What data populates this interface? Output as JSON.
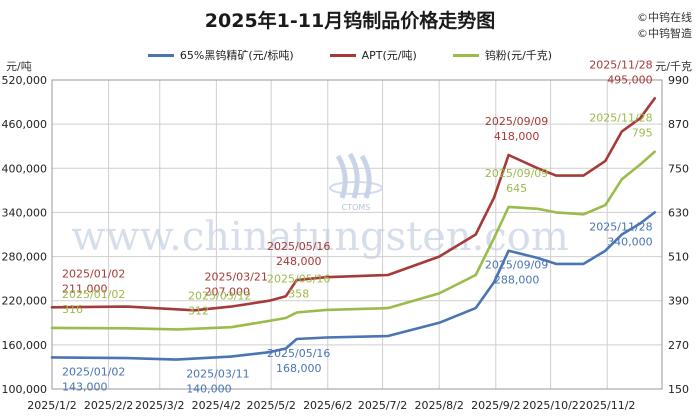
{
  "title": "2025年1-11月钨制品价格走势图",
  "copyright": [
    "©中钨在线",
    "©中钨智造"
  ],
  "watermark": {
    "text": "www.chinatungsten.com",
    "logo_text": "CTOMS"
  },
  "colors": {
    "series1": "#4a74b4",
    "series2": "#a53a38",
    "series3": "#9bbb4b",
    "grid": "#cfcfcf"
  },
  "chart_data": {
    "type": "line",
    "title": "2025年1-11月钨制品价格走势图",
    "left_axis": {
      "unit": "元/吨",
      "ylim": [
        100000,
        520000
      ],
      "ticks": [
        "100,000",
        "160,000",
        "220,000",
        "280,000",
        "340,000",
        "400,000",
        "460,000",
        "520,000"
      ]
    },
    "right_axis": {
      "unit": "元/千克",
      "ylim": [
        150,
        990
      ],
      "ticks": [
        "150",
        "270",
        "390",
        "510",
        "630",
        "750",
        "870",
        "990"
      ]
    },
    "x_ticks": [
      "2025/1/2",
      "2025/2/2",
      "2025/3/2",
      "2025/4/2",
      "2025/5/2",
      "2025/6/2",
      "2025/7/2",
      "2025/8/2",
      "2025/9/2",
      "2025/10/2",
      "2025/11/2"
    ],
    "grid": true,
    "legend_position": "top",
    "series": [
      {
        "name": "65%黑钨精矿(元/标吨)",
        "axis": "left",
        "points": [
          [
            "2025/1/2",
            143000
          ],
          [
            "2025/2/12",
            142000
          ],
          [
            "2025/3/11",
            140000
          ],
          [
            "2025/4/10",
            144000
          ],
          [
            "2025/5/1",
            150000
          ],
          [
            "2025/5/10",
            155000
          ],
          [
            "2025/5/16",
            168000
          ],
          [
            "2025/6/1",
            170000
          ],
          [
            "2025/7/5",
            172000
          ],
          [
            "2025/8/2",
            190000
          ],
          [
            "2025/8/22",
            210000
          ],
          [
            "2025/9/1",
            245000
          ],
          [
            "2025/9/9",
            288000
          ],
          [
            "2025/9/25",
            278000
          ],
          [
            "2025/10/5",
            270000
          ],
          [
            "2025/10/20",
            270000
          ],
          [
            "2025/11/1",
            288000
          ],
          [
            "2025/11/10",
            310000
          ],
          [
            "2025/11/20",
            325000
          ],
          [
            "2025/11/28",
            340000
          ]
        ]
      },
      {
        "name": "APT(元/吨)",
        "axis": "left",
        "points": [
          [
            "2025/1/2",
            211000
          ],
          [
            "2025/2/12",
            212000
          ],
          [
            "2025/3/21",
            207000
          ],
          [
            "2025/4/10",
            212000
          ],
          [
            "2025/5/1",
            220000
          ],
          [
            "2025/5/10",
            226000
          ],
          [
            "2025/5/16",
            248000
          ],
          [
            "2025/6/1",
            252000
          ],
          [
            "2025/7/5",
            255000
          ],
          [
            "2025/8/2",
            280000
          ],
          [
            "2025/8/22",
            310000
          ],
          [
            "2025/9/1",
            360000
          ],
          [
            "2025/9/9",
            418000
          ],
          [
            "2025/9/25",
            400000
          ],
          [
            "2025/10/5",
            390000
          ],
          [
            "2025/10/20",
            390000
          ],
          [
            "2025/11/1",
            410000
          ],
          [
            "2025/11/10",
            450000
          ],
          [
            "2025/11/20",
            468000
          ],
          [
            "2025/11/28",
            495000
          ]
        ]
      },
      {
        "name": "钨粉(元/千克)",
        "axis": "right",
        "points": [
          [
            "2025/1/2",
            316
          ],
          [
            "2025/2/12",
            315
          ],
          [
            "2025/3/12",
            312
          ],
          [
            "2025/4/10",
            318
          ],
          [
            "2025/5/1",
            335
          ],
          [
            "2025/5/10",
            343
          ],
          [
            "2025/5/16",
            358
          ],
          [
            "2025/6/1",
            365
          ],
          [
            "2025/7/5",
            370
          ],
          [
            "2025/8/2",
            410
          ],
          [
            "2025/8/22",
            460
          ],
          [
            "2025/9/1",
            560
          ],
          [
            "2025/9/9",
            645
          ],
          [
            "2025/9/25",
            640
          ],
          [
            "2025/10/5",
            630
          ],
          [
            "2025/10/20",
            625
          ],
          [
            "2025/11/1",
            650
          ],
          [
            "2025/11/10",
            720
          ],
          [
            "2025/11/20",
            760
          ],
          [
            "2025/11/28",
            795
          ]
        ]
      }
    ],
    "annotations": [
      {
        "series": 1,
        "date": "2025/1/2",
        "date_label": "2025/01/02",
        "value_label": "211,000"
      },
      {
        "series": 1,
        "date": "2025/3/21",
        "date_label": "2025/03/21",
        "value_label": "207,000"
      },
      {
        "series": 1,
        "date": "2025/5/16",
        "date_label": "2025/05/16",
        "value_label": "248,000"
      },
      {
        "series": 1,
        "date": "2025/9/9",
        "date_label": "2025/09/09",
        "value_label": "418,000"
      },
      {
        "series": 1,
        "date": "2025/11/28",
        "date_label": "2025/11/28",
        "value_label": "495,000"
      },
      {
        "series": 2,
        "date": "2025/1/2",
        "date_label": "2025/01/02",
        "value_label": "316"
      },
      {
        "series": 2,
        "date": "2025/3/12",
        "date_label": "2025/03/12",
        "value_label": "312"
      },
      {
        "series": 2,
        "date": "2025/5/16",
        "date_label": "2025/05/16",
        "value_label": "358"
      },
      {
        "series": 2,
        "date": "2025/9/9",
        "date_label": "2025/09/09",
        "value_label": "645"
      },
      {
        "series": 2,
        "date": "2025/11/28",
        "date_label": "2025/11/28",
        "value_label": "795"
      },
      {
        "series": 0,
        "date": "2025/1/2",
        "date_label": "2025/01/02",
        "value_label": "143,000"
      },
      {
        "series": 0,
        "date": "2025/3/11",
        "date_label": "2025/03/11",
        "value_label": "140,000"
      },
      {
        "series": 0,
        "date": "2025/5/16",
        "date_label": "2025/05/16",
        "value_label": "168,000"
      },
      {
        "series": 0,
        "date": "2025/9/9",
        "date_label": "2025/09/09",
        "value_label": "288,000"
      },
      {
        "series": 0,
        "date": "2025/11/28",
        "date_label": "2025/11/28",
        "value_label": "340,000"
      }
    ]
  }
}
